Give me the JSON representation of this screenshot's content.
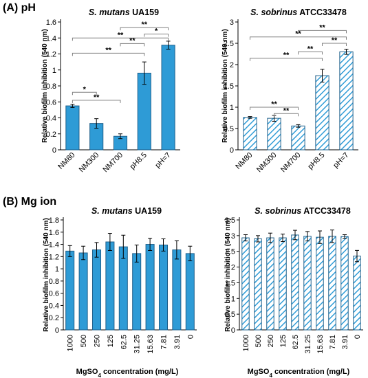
{
  "panels": {
    "A": "(A) pH",
    "B": "(B) Mg ion"
  },
  "colors": {
    "solid_fill": "#2E9BD6",
    "hatch_line": "#2E9BD6",
    "axis": "#000000",
    "bracket": "#7f7f7f"
  },
  "chart_data": [
    {
      "id": "A1",
      "type": "bar",
      "style": "solid",
      "title_species": "S. mutans",
      "title_strain": "UA159",
      "ylabel": "Relative biofilm inhibition (540 nm)",
      "xlabel": "",
      "categories": [
        "NM80",
        "NM300",
        "NM700",
        "pH8.5",
        "pH=7"
      ],
      "values": [
        0.55,
        0.33,
        0.17,
        0.96,
        1.31
      ],
      "errors": [
        0.02,
        0.06,
        0.03,
        0.14,
        0.05
      ],
      "ylim": [
        0,
        1.6
      ],
      "yticks": [
        "0",
        "0.2",
        "0.4",
        "0.6",
        "0.8",
        "1",
        "1.2",
        "1.4",
        "1.6"
      ],
      "x_label_rotation": "-45",
      "significance": [
        {
          "from": 0,
          "to": 1,
          "y": 0.72,
          "label": "*"
        },
        {
          "from": 0,
          "to": 2,
          "y": 0.62,
          "label": "**"
        },
        {
          "from": 0,
          "to": 4,
          "y": 1.4,
          "label": "**"
        },
        {
          "from": 2,
          "to": 4,
          "y": 1.53,
          "label": "**"
        },
        {
          "from": 0,
          "to": 3,
          "y": 1.21,
          "label": "**"
        },
        {
          "from": 2,
          "to": 3,
          "y": 1.33,
          "label": "**"
        },
        {
          "from": 3,
          "to": 4,
          "y": 1.45,
          "label": "*"
        }
      ]
    },
    {
      "id": "A2",
      "type": "bar",
      "style": "hatched",
      "title_species": "S. sobrinus",
      "title_strain": "ATCC33478",
      "ylabel": "Relative biofilm inhibition (540 nm)",
      "xlabel": "",
      "categories": [
        "NM80",
        "NM300",
        "NM700",
        "pH8.5",
        "pH=7"
      ],
      "values": [
        0.76,
        0.74,
        0.56,
        1.74,
        2.3
      ],
      "errors": [
        0.02,
        0.07,
        0.03,
        0.15,
        0.06
      ],
      "ylim": [
        0,
        3
      ],
      "yticks": [
        "0",
        "0.5",
        "1",
        "1.5",
        "2",
        "2.5",
        "3"
      ],
      "x_label_rotation": "-45",
      "significance": [
        {
          "from": 0,
          "to": 2,
          "y": 1.0,
          "label": "**"
        },
        {
          "from": 1,
          "to": 2,
          "y": 0.85,
          "label": "**"
        },
        {
          "from": 0,
          "to": 4,
          "y": 2.65,
          "label": "**"
        },
        {
          "from": 2,
          "to": 4,
          "y": 2.8,
          "label": "**"
        },
        {
          "from": 0,
          "to": 3,
          "y": 2.15,
          "label": "**"
        },
        {
          "from": 2,
          "to": 3,
          "y": 2.3,
          "label": "**"
        },
        {
          "from": 3,
          "to": 4,
          "y": 2.5,
          "label": "**"
        }
      ]
    },
    {
      "id": "B1",
      "type": "bar",
      "style": "solid",
      "title_species": "S. mutans",
      "title_strain": "UA159",
      "ylabel": "Relative biofilm inhibition (540 nm)",
      "xlabel_main": "MgSO",
      "xlabel_sub": "4",
      "xlabel_rest": " concentration (mg/L)",
      "categories": [
        "1000",
        "500",
        "250",
        "125",
        "62.5",
        "31.25",
        "15.63",
        "7.81",
        "3.91",
        "0"
      ],
      "values": [
        1.29,
        1.26,
        1.31,
        1.44,
        1.36,
        1.25,
        1.4,
        1.39,
        1.31,
        1.25
      ],
      "errors": [
        0.09,
        0.11,
        0.12,
        0.14,
        0.19,
        0.14,
        0.1,
        0.1,
        0.15,
        0.12
      ],
      "ylim": [
        0,
        1.8
      ],
      "yticks": [
        "0",
        "0.2",
        "0.4",
        "0.6",
        "0.8",
        "1",
        "1.2",
        "1.4",
        "1.6",
        "1.8"
      ],
      "x_label_rotation": "-90"
    },
    {
      "id": "B2",
      "type": "bar",
      "style": "hatched",
      "title_species": "S. sobrinus",
      "title_strain": "ATCC33478",
      "ylabel": "Relative biofilm inhibition (540 nm)",
      "xlabel_main": "MgSO",
      "xlabel_sub": "4",
      "xlabel_rest": " concentration (mg/L)",
      "categories": [
        "1000",
        "500",
        "250",
        "125",
        "62.5",
        "31.25",
        "15.63",
        "7.81",
        "3.91",
        "0"
      ],
      "values": [
        2.93,
        2.9,
        2.93,
        2.93,
        3.02,
        2.98,
        2.95,
        2.98,
        2.97,
        2.35
      ],
      "errors": [
        0.1,
        0.1,
        0.15,
        0.12,
        0.15,
        0.15,
        0.2,
        0.2,
        0.06,
        0.18
      ],
      "ylim": [
        0,
        3.5
      ],
      "yticks": [
        "0",
        "0.5",
        "1",
        "1.5",
        "2",
        "2.5",
        "3",
        "3.5"
      ],
      "x_label_rotation": "-90"
    }
  ]
}
